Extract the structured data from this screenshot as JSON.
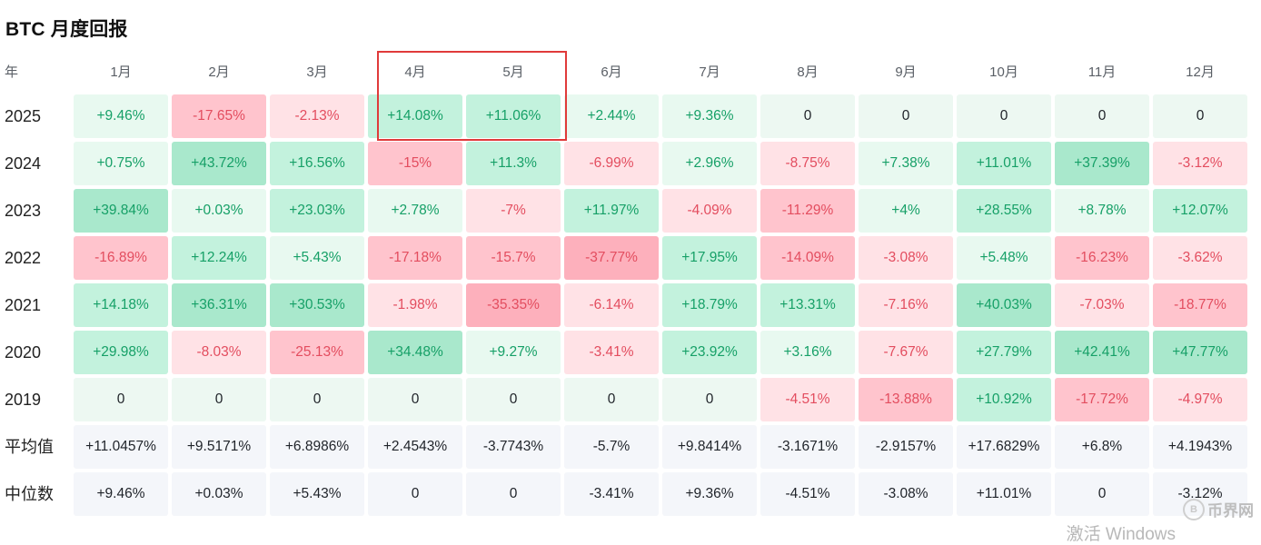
{
  "title": "BTC 月度回报",
  "header": {
    "year_label": "年",
    "months": [
      "1月",
      "2月",
      "3月",
      "4月",
      "5月",
      "6月",
      "7月",
      "8月",
      "9月",
      "10月",
      "11月",
      "12月"
    ]
  },
  "rows": [
    {
      "year": "2025",
      "values": [
        "+9.46%",
        "-17.65%",
        "-2.13%",
        "+14.08%",
        "+11.06%",
        "+2.44%",
        "+9.36%",
        "0",
        "0",
        "0",
        "0",
        "0"
      ]
    },
    {
      "year": "2024",
      "values": [
        "+0.75%",
        "+43.72%",
        "+16.56%",
        "-15%",
        "+11.3%",
        "-6.99%",
        "+2.96%",
        "-8.75%",
        "+7.38%",
        "+11.01%",
        "+37.39%",
        "-3.12%"
      ]
    },
    {
      "year": "2023",
      "values": [
        "+39.84%",
        "+0.03%",
        "+23.03%",
        "+2.78%",
        "-7%",
        "+11.97%",
        "-4.09%",
        "-11.29%",
        "+4%",
        "+28.55%",
        "+8.78%",
        "+12.07%"
      ]
    },
    {
      "year": "2022",
      "values": [
        "-16.89%",
        "+12.24%",
        "+5.43%",
        "-17.18%",
        "-15.7%",
        "-37.77%",
        "+17.95%",
        "-14.09%",
        "-3.08%",
        "+5.48%",
        "-16.23%",
        "-3.62%"
      ]
    },
    {
      "year": "2021",
      "values": [
        "+14.18%",
        "+36.31%",
        "+30.53%",
        "-1.98%",
        "-35.35%",
        "-6.14%",
        "+18.79%",
        "+13.31%",
        "-7.16%",
        "+40.03%",
        "-7.03%",
        "-18.77%"
      ]
    },
    {
      "year": "2020",
      "values": [
        "+29.98%",
        "-8.03%",
        "-25.13%",
        "+34.48%",
        "+9.27%",
        "-3.41%",
        "+23.92%",
        "+3.16%",
        "-7.67%",
        "+27.79%",
        "+42.41%",
        "+47.77%"
      ]
    },
    {
      "year": "2019",
      "values": [
        "0",
        "0",
        "0",
        "0",
        "0",
        "0",
        "0",
        "-4.51%",
        "-13.88%",
        "+10.92%",
        "-17.72%",
        "-4.97%"
      ]
    }
  ],
  "stats": [
    {
      "label": "平均值",
      "values": [
        "+11.0457%",
        "+9.5171%",
        "+6.8986%",
        "+2.4543%",
        "-3.7743%",
        "-5.7%",
        "+9.8414%",
        "-3.1671%",
        "-2.9157%",
        "+17.6829%",
        "+6.8%",
        "+4.1943%"
      ]
    },
    {
      "label": "中位数",
      "values": [
        "+9.46%",
        "+0.03%",
        "+5.43%",
        "0",
        "0",
        "-3.41%",
        "+9.36%",
        "-4.51%",
        "-3.08%",
        "+11.01%",
        "0",
        "-3.12%"
      ]
    }
  ],
  "colors": {
    "positive_text": "#16a067",
    "negative_text": "#e34d5f",
    "stat_bg": "#f4f6fa",
    "zero_bg": "#edf8f2",
    "highlight_border": "#e03a3a"
  },
  "watermark": "激活 Windows",
  "logo": {
    "badge": "B",
    "text": "币界网"
  }
}
